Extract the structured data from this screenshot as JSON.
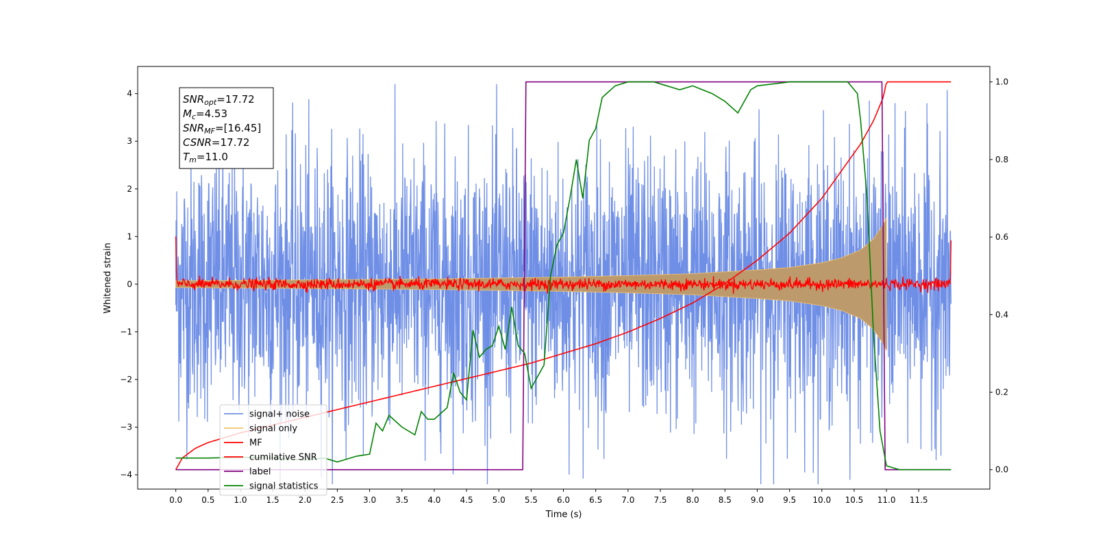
{
  "chart_data": {
    "type": "line",
    "xlabel": "Time (s)",
    "ylabel": "Whitened strain",
    "xlim": [
      -0.59,
      12.6
    ],
    "ylim": [
      -4.3,
      4.57
    ],
    "y2lim": [
      -0.05,
      1.04
    ],
    "xticks": [
      "0.0",
      "0.5",
      "1.0",
      "1.5",
      "2.0",
      "2.5",
      "3.0",
      "3.5",
      "4.0",
      "4.5",
      "5.0",
      "5.5",
      "6.0",
      "6.5",
      "7.0",
      "7.5",
      "8.0",
      "8.5",
      "9.0",
      "9.5",
      "10.0",
      "10.5",
      "11.0",
      "11.5"
    ],
    "yticks": [
      "−4",
      "−3",
      "−2",
      "−1",
      "0",
      "1",
      "2",
      "3",
      "4"
    ],
    "y2ticks": [
      "0.0",
      "0.2",
      "0.4",
      "0.6",
      "0.8",
      "1.0"
    ],
    "grid": false,
    "legend_position": "lower-left",
    "info_box": {
      "lines": [
        {
          "sym": "SNR",
          "sub": "opt",
          "val": "=17.72"
        },
        {
          "sym": "M",
          "sub": "c",
          "val": "=4.53"
        },
        {
          "sym": "SNR",
          "sub": "MF",
          "val": "=[16.45]"
        },
        {
          "sym": "CSNR",
          "sub": "",
          "val": "=17.72"
        },
        {
          "sym": "T",
          "sub": "m",
          "val": "=11.0"
        }
      ]
    },
    "series": [
      {
        "name": "signal+ noise",
        "color": "#6f8fe6",
        "axis": "left",
        "kind": "noise",
        "x_range": [
          0,
          12.0
        ],
        "amplitude": 1.4,
        "max_abs": 4.2
      },
      {
        "name": "signal only",
        "color": "#f5c26b",
        "axis": "left",
        "kind": "chirp-envelope",
        "x": [
          0,
          1,
          2,
          3,
          4,
          5,
          6,
          7,
          8,
          9,
          9.5,
          10,
          10.3,
          10.6,
          10.8,
          10.95,
          11.0
        ],
        "envelope": [
          0.07,
          0.08,
          0.09,
          0.1,
          0.11,
          0.13,
          0.15,
          0.18,
          0.22,
          0.3,
          0.35,
          0.45,
          0.55,
          0.72,
          0.95,
          1.25,
          1.4
        ]
      },
      {
        "name": "MF",
        "color": "#ff0000",
        "axis": "left",
        "kind": "noise-small",
        "x_range": [
          0,
          12.0
        ],
        "amplitude": 0.06,
        "start_value": 1.0,
        "end_value": 0.92
      },
      {
        "name": "cumilative SNR",
        "color": "#ff0000",
        "axis": "right",
        "x": [
          0,
          0.1,
          0.3,
          0.5,
          1.0,
          1.5,
          2.0,
          2.5,
          3.0,
          3.5,
          4.0,
          4.5,
          5.0,
          5.5,
          6.0,
          6.5,
          7.0,
          7.5,
          8.0,
          8.5,
          9.0,
          9.5,
          10.0,
          10.3,
          10.6,
          10.8,
          10.95,
          11.0,
          12.0
        ],
        "y": [
          0.0,
          0.03,
          0.055,
          0.07,
          0.095,
          0.115,
          0.135,
          0.155,
          0.175,
          0.195,
          0.215,
          0.235,
          0.255,
          0.275,
          0.3,
          0.325,
          0.355,
          0.39,
          0.43,
          0.48,
          0.54,
          0.61,
          0.7,
          0.77,
          0.84,
          0.9,
          0.96,
          1.0,
          1.0
        ]
      },
      {
        "name": "label",
        "color": "#800080",
        "axis": "right",
        "x": [
          0,
          5.37,
          5.42,
          10.93,
          10.98,
          12.0
        ],
        "y": [
          0,
          0,
          1,
          1,
          0,
          0
        ]
      },
      {
        "name": "signal statistics",
        "color": "#008000",
        "axis": "right",
        "x": [
          0,
          0.5,
          1.0,
          1.5,
          2.0,
          2.3,
          2.5,
          2.8,
          3.0,
          3.1,
          3.2,
          3.3,
          3.5,
          3.7,
          3.8,
          3.9,
          4.0,
          4.2,
          4.3,
          4.4,
          4.5,
          4.6,
          4.7,
          4.8,
          4.9,
          5.0,
          5.1,
          5.2,
          5.3,
          5.4,
          5.5,
          5.6,
          5.7,
          5.8,
          5.9,
          6.0,
          6.1,
          6.2,
          6.3,
          6.4,
          6.5,
          6.6,
          6.8,
          7.0,
          7.2,
          7.4,
          7.6,
          7.8,
          8.0,
          8.3,
          8.5,
          8.7,
          8.9,
          9.0,
          9.5,
          10.0,
          10.4,
          10.55,
          10.6,
          10.7,
          10.8,
          10.9,
          11.0,
          11.2,
          12.0
        ],
        "y": [
          0.03,
          0.03,
          0.032,
          0.03,
          0.025,
          0.03,
          0.02,
          0.035,
          0.04,
          0.12,
          0.1,
          0.14,
          0.11,
          0.09,
          0.15,
          0.13,
          0.13,
          0.16,
          0.25,
          0.2,
          0.18,
          0.36,
          0.29,
          0.31,
          0.32,
          0.37,
          0.31,
          0.42,
          0.32,
          0.3,
          0.21,
          0.24,
          0.27,
          0.5,
          0.58,
          0.61,
          0.7,
          0.8,
          0.7,
          0.85,
          0.88,
          0.96,
          0.99,
          1.0,
          1.0,
          1.0,
          0.99,
          0.98,
          0.99,
          0.97,
          0.95,
          0.92,
          0.98,
          0.99,
          1.0,
          1.0,
          1.0,
          0.97,
          0.9,
          0.7,
          0.35,
          0.1,
          0.01,
          0.0,
          0.0
        ]
      }
    ]
  }
}
